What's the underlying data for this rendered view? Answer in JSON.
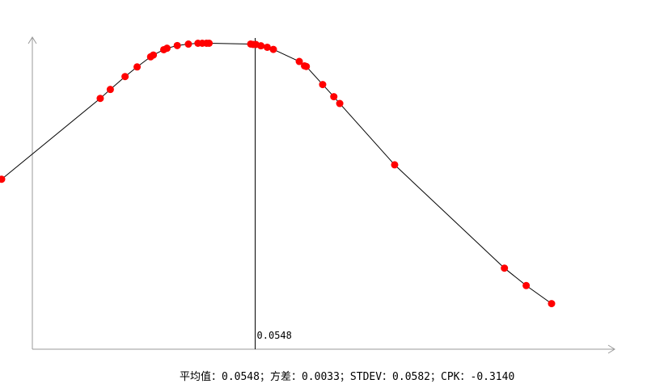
{
  "chart_data": {
    "type": "scatter",
    "title": "",
    "xlabel": "",
    "ylabel": "",
    "mean_value": 0.0548,
    "std_dev": 0.0582,
    "mean_label": "0.0548",
    "stats_text": "平均值：0.0548；方差：0.0033；STDEV：0.0582；CPK：-0.3140",
    "curve_color": "#000000",
    "point_color": "#ff0000",
    "axis_color": "#999999",
    "xlim": [
      -0.0861,
      0.2195
    ],
    "ylim": [
      0,
      1.04
    ],
    "points": [
      {
        "x": -0.0861,
        "y": 0.5555
      },
      {
        "x": -0.0313,
        "y": 0.8198
      },
      {
        "x": -0.0257,
        "y": 0.849
      },
      {
        "x": -0.0175,
        "y": 0.8911
      },
      {
        "x": -0.0108,
        "y": 0.9227
      },
      {
        "x": -0.0033,
        "y": 0.9557
      },
      {
        "x": -0.0018,
        "y": 0.9614
      },
      {
        "x": 0.004,
        "y": 0.979
      },
      {
        "x": 0.0058,
        "y": 0.9837
      },
      {
        "x": 0.0115,
        "y": 0.9925
      },
      {
        "x": 0.0177,
        "y": 0.9973
      },
      {
        "x": 0.023,
        "y": 1.0
      },
      {
        "x": 0.0254,
        "y": 1.0
      },
      {
        "x": 0.0278,
        "y": 1.0
      },
      {
        "x": 0.0292,
        "y": 1.0
      },
      {
        "x": 0.0523,
        "y": 0.9975
      },
      {
        "x": 0.0537,
        "y": 0.9962
      },
      {
        "x": 0.0552,
        "y": 0.996
      },
      {
        "x": 0.058,
        "y": 0.9917
      },
      {
        "x": 0.0615,
        "y": 0.9869
      },
      {
        "x": 0.0649,
        "y": 0.98
      },
      {
        "x": 0.0793,
        "y": 0.9404
      },
      {
        "x": 0.0822,
        "y": 0.9261
      },
      {
        "x": 0.0832,
        "y": 0.9241
      },
      {
        "x": 0.0923,
        "y": 0.865
      },
      {
        "x": 0.0985,
        "y": 0.8254
      },
      {
        "x": 0.1018,
        "y": 0.803
      },
      {
        "x": 0.1323,
        "y": 0.6026
      },
      {
        "x": 0.1933,
        "y": 0.265
      },
      {
        "x": 0.2054,
        "y": 0.208
      },
      {
        "x": 0.2195,
        "y": 0.149
      }
    ]
  }
}
